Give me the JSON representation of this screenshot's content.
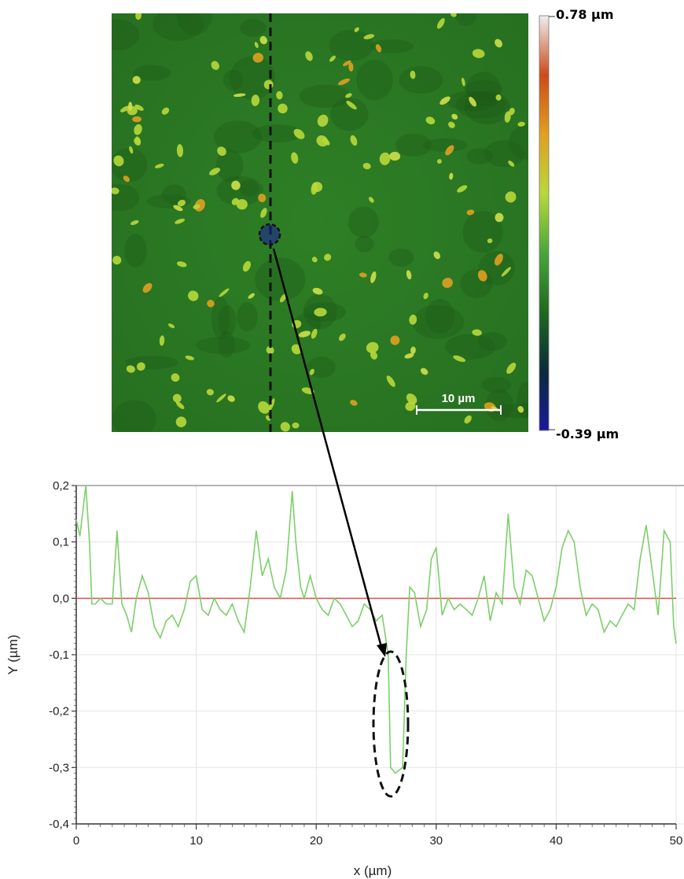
{
  "colors": {
    "map_base": "#2b7a24",
    "map_highlight": "#b8d83a",
    "profile_line": "#7ccf6a",
    "zero_line": "#e05252",
    "grid": "#e4e4e4",
    "annotation": "#000000"
  },
  "height_map": {
    "colorbar_max_label": "0.78 µm",
    "colorbar_min_label": "-0.39 µm",
    "colorbar_stops": [
      "#eeeeee",
      "#cc4a1a",
      "#e0a020",
      "#b8d83a",
      "#4aa63a",
      "#1e6a20",
      "#0b2a3a",
      "#1a1a9a"
    ],
    "scale_bar_label": "10 µm",
    "scan_line": "dashed-vertical",
    "defect_marker": "dashed-circle"
  },
  "chart_data": {
    "type": "line",
    "title": "",
    "xlabel": "x (µm)",
    "ylabel": "Y (µm)",
    "xlim": [
      0,
      50
    ],
    "ylim": [
      -0.4,
      0.2
    ],
    "xticks": [
      0,
      10,
      20,
      30,
      40,
      50
    ],
    "xtick_labels": [
      "0",
      "10",
      "20",
      "30",
      "40",
      "50"
    ],
    "yticks": [
      0.2,
      0.1,
      0.0,
      -0.1,
      -0.2,
      -0.3,
      -0.4
    ],
    "ytick_labels": [
      "0,2",
      "0,1",
      "0,0",
      "-0,1",
      "-0,2",
      "-0,3",
      "-0,4"
    ],
    "grid": true,
    "reference_line_y": 0.0,
    "series": [
      {
        "x": [
          0,
          0.3,
          0.8,
          1.1,
          1.3,
          1.6,
          2.0,
          2.5,
          3.0,
          3.4,
          3.8,
          4.2,
          4.6,
          5.0,
          5.5,
          6.0,
          6.5,
          7.0,
          7.5,
          8.0,
          8.5,
          9.0,
          9.5,
          10.0,
          10.5,
          11.0,
          11.5,
          12.0,
          12.5,
          13.0,
          13.5,
          14.0,
          14.5,
          15.0,
          15.5,
          16.0,
          16.5,
          17.0,
          17.5,
          18.0,
          18.3,
          18.7,
          19.0,
          19.5,
          20.0,
          20.5,
          21.0,
          21.5,
          22.0,
          22.5,
          23.0,
          23.5,
          24.0,
          24.5,
          25.0,
          25.5,
          26.0,
          26.2,
          26.6,
          27.2,
          27.5,
          27.8,
          28.2,
          28.7,
          29.2,
          29.6,
          30.0,
          30.5,
          31.0,
          31.5,
          32.0,
          32.5,
          33.0,
          33.5,
          34.0,
          34.5,
          35.0,
          35.5,
          36.0,
          36.5,
          37.0,
          37.5,
          38.0,
          38.5,
          39.0,
          39.5,
          40.0,
          40.5,
          41.0,
          41.5,
          42.0,
          42.5,
          43.0,
          43.5,
          44.0,
          44.5,
          45.0,
          45.5,
          46.0,
          46.5,
          47.0,
          47.5,
          48.0,
          48.5,
          49.0,
          49.5,
          49.8,
          50.0
        ],
        "y": [
          0.14,
          0.11,
          0.2,
          0.1,
          -0.01,
          -0.01,
          0.0,
          -0.01,
          -0.01,
          0.12,
          -0.01,
          -0.03,
          -0.06,
          0.0,
          0.04,
          0.01,
          -0.05,
          -0.07,
          -0.04,
          -0.03,
          -0.05,
          -0.02,
          0.03,
          0.04,
          -0.02,
          -0.03,
          0.0,
          -0.02,
          -0.03,
          -0.01,
          -0.04,
          -0.06,
          0.02,
          0.12,
          0.04,
          0.07,
          0.02,
          0.0,
          0.05,
          0.19,
          0.1,
          0.02,
          0.0,
          0.04,
          0.0,
          -0.02,
          -0.03,
          0.0,
          -0.01,
          -0.03,
          -0.05,
          -0.04,
          -0.01,
          -0.02,
          -0.04,
          -0.03,
          -0.1,
          -0.3,
          -0.31,
          -0.3,
          -0.1,
          0.02,
          0.01,
          -0.05,
          -0.02,
          0.07,
          0.09,
          -0.03,
          0.0,
          -0.02,
          -0.01,
          -0.02,
          -0.03,
          0.0,
          0.04,
          -0.04,
          0.01,
          -0.01,
          0.15,
          0.02,
          -0.01,
          0.05,
          0.04,
          0.0,
          -0.04,
          -0.02,
          0.02,
          0.09,
          0.12,
          0.1,
          0.02,
          -0.03,
          -0.01,
          -0.02,
          -0.06,
          -0.04,
          -0.05,
          -0.03,
          -0.01,
          -0.02,
          0.07,
          0.13,
          0.05,
          -0.03,
          0.12,
          0.1,
          -0.05,
          -0.08
        ]
      }
    ]
  }
}
